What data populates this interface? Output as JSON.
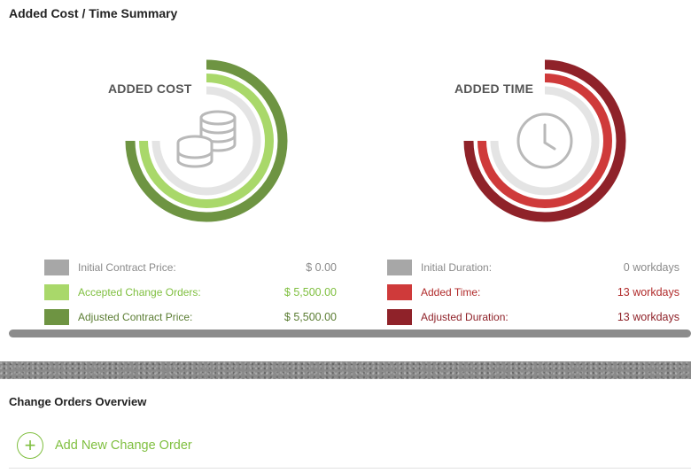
{
  "summary": {
    "title": "Added Cost / Time Summary",
    "cost": {
      "label": "ADDED COST",
      "icon": "coins-icon",
      "rows": [
        {
          "label": "Initial Contract Price:",
          "value": "$ 0.00",
          "color": "#a7a7a7",
          "text_color": "#8a8a8a"
        },
        {
          "label": "Accepted Change Orders:",
          "value": "$ 5,500.00",
          "color": "#a9d86a",
          "text_color": "#7fbf3f"
        },
        {
          "label": "Adjusted Contract Price:",
          "value": "$ 5,500.00",
          "color": "#6e9442",
          "text_color": "#5b7d33"
        }
      ]
    },
    "time": {
      "label": "ADDED TIME",
      "icon": "clock-icon",
      "rows": [
        {
          "label": "Initial Duration:",
          "value": "0 workdays",
          "color": "#a7a7a7",
          "text_color": "#8a8a8a"
        },
        {
          "label": "Added Time:",
          "value": "13 workdays",
          "color": "#cf3a3a",
          "text_color": "#b02a2a"
        },
        {
          "label": "Adjusted Duration:",
          "value": "13 workdays",
          "color": "#8f2229",
          "text_color": "#8f2229"
        }
      ]
    }
  },
  "overview": {
    "title": "Change Orders Overview",
    "add_button_label": "Add New Change Order",
    "add_icon": "plus-circle-icon"
  }
}
